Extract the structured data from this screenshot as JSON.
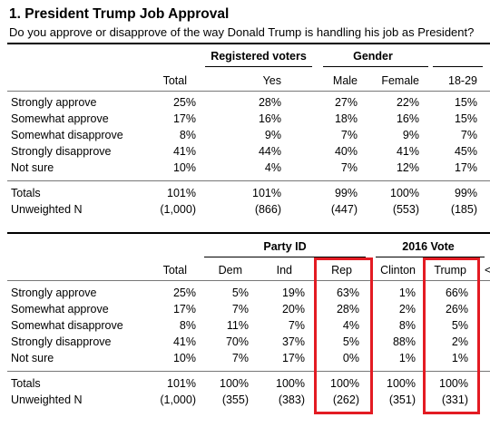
{
  "question": {
    "title": "1. President Trump Job Approval",
    "text": "Do you approve or disapprove of the way Donald Trump is handling his job as President?"
  },
  "table1": {
    "group_headers": [
      "Registered voters",
      "Gender"
    ],
    "columns": [
      "Total",
      "Yes",
      "Male",
      "Female",
      "18-29"
    ],
    "rows": [
      {
        "label": "Strongly approve",
        "values": [
          "25%",
          "28%",
          "27%",
          "22%",
          "15%"
        ]
      },
      {
        "label": "Somewhat approve",
        "values": [
          "17%",
          "16%",
          "18%",
          "16%",
          "15%"
        ]
      },
      {
        "label": "Somewhat disapprove",
        "values": [
          "8%",
          "9%",
          "7%",
          "9%",
          "7%"
        ]
      },
      {
        "label": "Strongly disapprove",
        "values": [
          "41%",
          "44%",
          "40%",
          "41%",
          "45%"
        ]
      },
      {
        "label": "Not sure",
        "values": [
          "10%",
          "4%",
          "7%",
          "12%",
          "17%"
        ]
      }
    ],
    "totals": {
      "label": "Totals",
      "values": [
        "101%",
        "101%",
        "99%",
        "100%",
        "99%"
      ]
    },
    "unweighted": {
      "label": "Unweighted N",
      "values": [
        "(1,000)",
        "(866)",
        "(447)",
        "(553)",
        "(185)"
      ]
    }
  },
  "table2": {
    "group_headers": [
      "Party ID",
      "2016 Vote"
    ],
    "columns": [
      "Total",
      "Dem",
      "Ind",
      "Rep",
      "Clinton",
      "Trump"
    ],
    "cut_glyph": "<",
    "rows": [
      {
        "label": "Strongly approve",
        "values": [
          "25%",
          "5%",
          "19%",
          "63%",
          "1%",
          "66%"
        ]
      },
      {
        "label": "Somewhat approve",
        "values": [
          "17%",
          "7%",
          "20%",
          "28%",
          "2%",
          "26%"
        ]
      },
      {
        "label": "Somewhat disapprove",
        "values": [
          "8%",
          "11%",
          "7%",
          "4%",
          "8%",
          "5%"
        ]
      },
      {
        "label": "Strongly disapprove",
        "values": [
          "41%",
          "70%",
          "37%",
          "5%",
          "88%",
          "2%"
        ]
      },
      {
        "label": "Not sure",
        "values": [
          "10%",
          "7%",
          "17%",
          "0%",
          "1%",
          "1%"
        ]
      }
    ],
    "totals": {
      "label": "Totals",
      "values": [
        "101%",
        "100%",
        "100%",
        "100%",
        "100%",
        "100%"
      ]
    },
    "unweighted": {
      "label": "Unweighted N",
      "values": [
        "(1,000)",
        "(355)",
        "(383)",
        "(262)",
        "(351)",
        "(331)"
      ]
    }
  },
  "highlight_color": "#e31b23"
}
